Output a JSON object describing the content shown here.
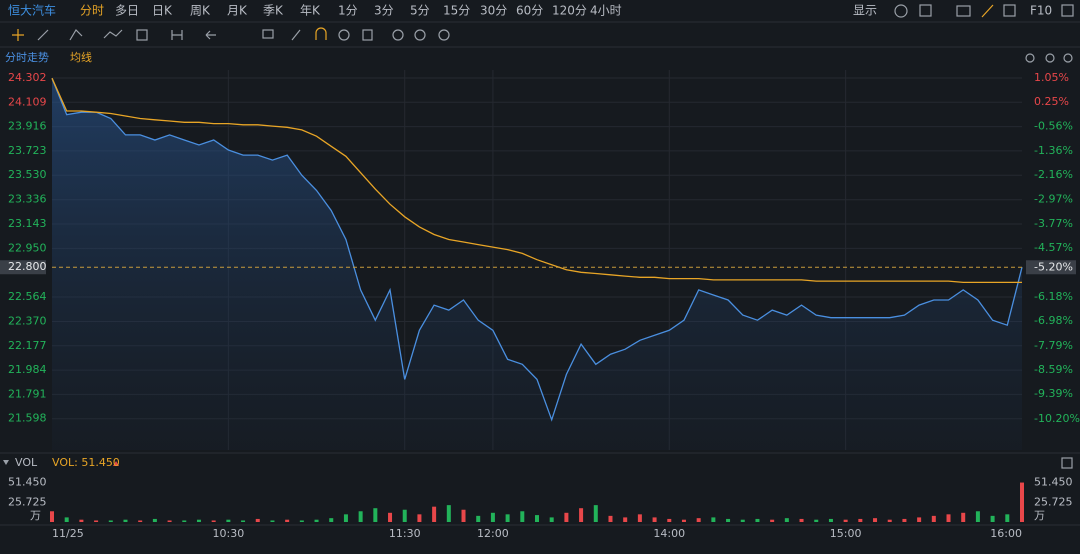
{
  "toolbar": {
    "symbol": "恒大汽车",
    "periods": [
      "分时",
      "多日",
      "日K",
      "周K",
      "月K",
      "季K",
      "年K",
      "1分",
      "3分",
      "5分",
      "15分",
      "30分",
      "60分",
      "120分",
      "4小时"
    ],
    "active": "分时",
    "display": "显示",
    "f10": "F10"
  },
  "chart_data": [
    {
      "type": "line",
      "x": [
        "09:30",
        "09:35",
        "09:40",
        "09:45",
        "09:50",
        "09:55",
        "10:00",
        "10:05",
        "10:10",
        "10:15",
        "10:20",
        "10:25",
        "10:30",
        "10:35",
        "10:40",
        "10:45",
        "10:50",
        "10:55",
        "11:00",
        "11:05",
        "11:10",
        "11:15",
        "11:20",
        "11:25",
        "11:30",
        "11:35",
        "11:40",
        "11:45",
        "11:50",
        "11:55",
        "12:00",
        "13:05",
        "13:10",
        "13:15",
        "13:20",
        "13:25",
        "13:30",
        "13:35",
        "13:40",
        "13:45",
        "13:50",
        "13:55",
        "14:00",
        "14:05",
        "14:10",
        "14:15",
        "14:20",
        "14:25",
        "14:30",
        "14:35",
        "14:40",
        "14:45",
        "14:50",
        "14:55",
        "15:00",
        "15:05",
        "15:10",
        "15:15",
        "15:20",
        "15:25",
        "15:30",
        "15:35",
        "15:40",
        "15:45",
        "15:50",
        "15:55",
        "16:00"
      ],
      "series": [
        {
          "name": "分时走势",
          "color": "#4a8fe0",
          "values": [
            24.3,
            24.01,
            24.03,
            24.03,
            23.98,
            23.85,
            23.85,
            23.81,
            23.85,
            23.81,
            23.77,
            23.81,
            23.73,
            23.69,
            23.69,
            23.65,
            23.69,
            23.53,
            23.41,
            23.25,
            23.02,
            22.62,
            22.38,
            22.62,
            21.91,
            22.3,
            22.5,
            22.46,
            22.54,
            22.38,
            22.3,
            22.07,
            22.03,
            21.91,
            21.59,
            21.95,
            22.19,
            22.03,
            22.11,
            22.15,
            22.22,
            22.26,
            22.3,
            22.38,
            22.62,
            22.58,
            22.54,
            22.42,
            22.38,
            22.46,
            22.42,
            22.5,
            22.42,
            22.4,
            22.4,
            22.4,
            22.4,
            22.4,
            22.42,
            22.5,
            22.54,
            22.54,
            22.62,
            22.54,
            22.38,
            22.34,
            22.8
          ]
        },
        {
          "name": "均线",
          "color": "#e8a526",
          "values": [
            24.3,
            24.04,
            24.04,
            24.03,
            24.02,
            24.0,
            23.98,
            23.97,
            23.96,
            23.95,
            23.95,
            23.94,
            23.94,
            23.93,
            23.93,
            23.92,
            23.91,
            23.89,
            23.84,
            23.76,
            23.68,
            23.55,
            23.42,
            23.3,
            23.2,
            23.12,
            23.06,
            23.02,
            23.0,
            22.98,
            22.96,
            22.94,
            22.91,
            22.86,
            22.82,
            22.78,
            22.76,
            22.75,
            22.74,
            22.73,
            22.72,
            22.72,
            22.71,
            22.71,
            22.71,
            22.7,
            22.7,
            22.7,
            22.7,
            22.7,
            22.7,
            22.7,
            22.69,
            22.69,
            22.69,
            22.69,
            22.69,
            22.69,
            22.69,
            22.69,
            22.69,
            22.69,
            22.68,
            22.68,
            22.68,
            22.68,
            22.68
          ]
        }
      ],
      "ylim": [
        21.35,
        24.365
      ],
      "yticks": [
        24.302,
        24.109,
        23.916,
        23.723,
        {
          "value": 23.53,
          "label": "23.530"
        },
        23.336,
        23.143,
        {
          "value": 22.95,
          "label": "22.950"
        },
        22.564,
        {
          "value": 22.37,
          "label": "22.370"
        },
        22.177,
        21.984,
        21.791,
        21.598
      ],
      "y2lim": [
        -11.23,
        1.31
      ],
      "y2ticks": [
        {
          "value": 1.05,
          "label": "1.05%"
        },
        {
          "value": 0.25,
          "label": "0.25%"
        },
        {
          "value": -0.56,
          "label": "-0.56%"
        },
        {
          "value": -1.36,
          "label": "-1.36%"
        },
        {
          "value": -2.16,
          "label": "-2.16%"
        },
        {
          "value": -2.97,
          "label": "-2.97%"
        },
        {
          "value": -3.77,
          "label": "-3.77%"
        },
        {
          "value": -4.57,
          "label": "-4.57%"
        },
        {
          "value": -6.18,
          "label": "-6.18%"
        },
        {
          "value": -6.98,
          "label": "-6.98%"
        },
        {
          "value": -7.79,
          "label": "-7.79%"
        },
        {
          "value": -8.59,
          "label": "-8.59%"
        },
        {
          "value": -9.39,
          "label": "-9.39%"
        },
        {
          "value": -10.2,
          "label": "-10.20%"
        }
      ],
      "xticks": [
        {
          "value": "09:30",
          "label": "11/25"
        },
        "10:30",
        "11:30",
        "12:00",
        "14:00",
        "15:00",
        "16:00"
      ],
      "last_price": {
        "value": 22.8,
        "label": "22.800"
      },
      "last_change": {
        "value": -5.2,
        "label": "-5.20%"
      },
      "up_color": "#e8474a",
      "down_color": "#22b35a",
      "grid": true
    },
    {
      "type": "bar",
      "title": "VOL",
      "current_label": "VOL: 51.450",
      "unit": "万",
      "values": [
        14,
        6,
        3,
        2,
        2,
        3,
        2,
        4,
        2,
        2,
        3,
        2,
        3,
        2,
        4,
        2,
        3,
        2,
        3,
        5,
        10,
        14,
        18,
        12,
        16,
        10,
        20,
        22,
        16,
        8,
        12,
        10,
        14,
        9,
        6,
        12,
        18,
        22,
        8,
        6,
        10,
        6,
        4,
        3,
        5,
        6,
        4,
        3,
        4,
        3,
        5,
        4,
        3,
        4,
        3,
        4,
        5,
        3,
        4,
        6,
        8,
        10,
        12,
        14,
        8,
        10,
        51.45
      ],
      "ylim": [
        0,
        60
      ],
      "yticks": [
        {
          "value": 51.45,
          "label": "51.450"
        },
        25.725
      ],
      "up_color": "#e8474a",
      "down_color": "#22b35a"
    }
  ]
}
